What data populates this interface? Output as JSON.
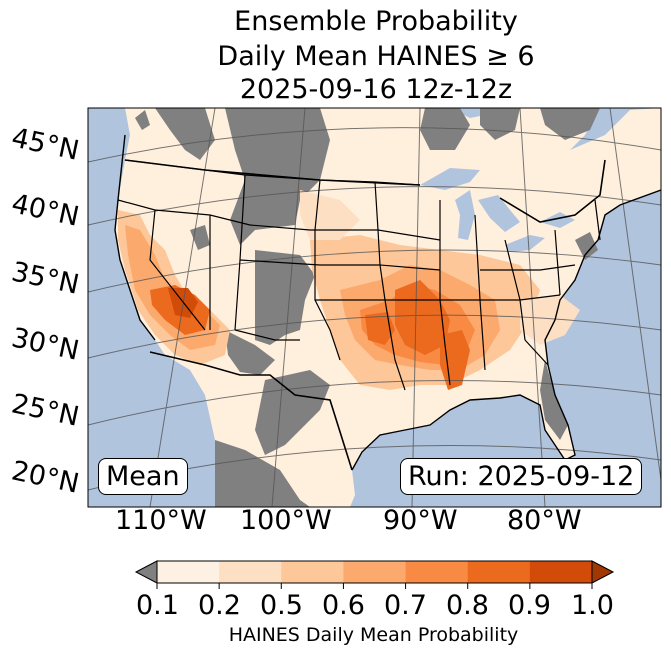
{
  "title": {
    "line1": "Ensemble Probability",
    "line2": "Daily Mean HAINES ≥ 6",
    "line3": "2025-09-16 12z-12z"
  },
  "latitude_labels": [
    "45°N",
    "40°N",
    "35°N",
    "30°N",
    "25°N",
    "20°N"
  ],
  "longitude_labels": [
    "110°W",
    "100°W",
    "90°W",
    "80°W"
  ],
  "mean_label": "Mean",
  "run_label": "Run: 2025-09-12",
  "colorbar": {
    "label": "HAINES Daily Mean Probability",
    "ticks": [
      "0.1",
      "0.2",
      "0.5",
      "0.6",
      "0.7",
      "0.8",
      "0.9",
      "1.0"
    ],
    "colors": [
      "#fdf1e4",
      "#fde0c4",
      "#fdc799",
      "#fca96d",
      "#f98a43",
      "#ec6a1d",
      "#d24b09"
    ],
    "under_color": "#808080",
    "over_color": "#a13803"
  },
  "colors": {
    "water": "#b0c4de",
    "gray": "#808080"
  }
}
